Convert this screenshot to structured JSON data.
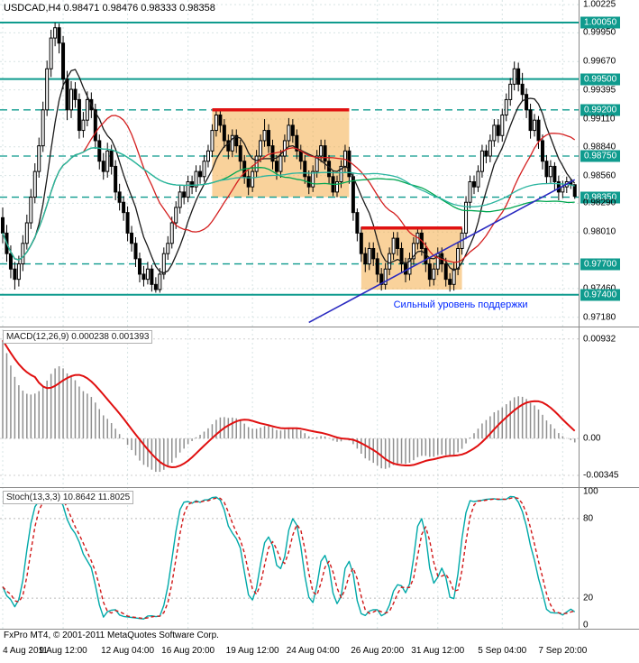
{
  "header": {
    "title": "USDCAD,H4 0.98471 0.98476 0.98333 0.98358",
    "symbol": "USDCAD",
    "period": "H4"
  },
  "footer": {
    "copyright": "FxPro MT4, © 2001-2011 MetaQuotes Software Corp."
  },
  "colors": {
    "teal_line": "#0f9b8e",
    "badge_bg": "#0f9b8e",
    "badge_text": "#ffffff",
    "grid": "#d7e4e4",
    "panel_border": "#8a8a8a",
    "zone_fill": "#f4a537",
    "zone_top": "#e01212",
    "macd_hist": "#8f8f8f",
    "macd_signal": "#e01010",
    "stoch_k": "#00a9a9",
    "stoch_d": "#d01818",
    "candle": "#000000",
    "trend_blue": "#2a2ac0",
    "annotation_blue": "#0026ff"
  },
  "time_axis": {
    "ticks": [
      {
        "label": "4 Aug 2011",
        "bar": 0
      },
      {
        "label": "9 Aug 12:00",
        "bar": 15
      },
      {
        "label": "12 Aug 04:00",
        "bar": 31
      },
      {
        "label": "16 Aug 20:00",
        "bar": 46
      },
      {
        "label": "19 Aug 12:00",
        "bar": 62
      },
      {
        "label": "24 Aug 04:00",
        "bar": 77
      },
      {
        "label": "26 Aug 20:00",
        "bar": 93
      },
      {
        "label": "31 Aug 12:00",
        "bar": 108
      },
      {
        "label": "5 Sep 04:00",
        "bar": 124
      },
      {
        "label": "7 Sep 20:00",
        "bar": 139
      }
    ]
  },
  "chart_data": [
    {
      "type": "candlestick",
      "symbol": "USDCAD",
      "timeframe": "H4",
      "current_bar": {
        "open": 0.98471,
        "high": 0.98476,
        "low": 0.98333,
        "close": 0.98358
      },
      "ylim": [
        0.9709,
        1.0027
      ],
      "y_ticks": [
        {
          "label": "1.00225",
          "value": 1.00225,
          "highlight": false
        },
        {
          "label": "1.00050",
          "value": 1.0005,
          "highlight": true
        },
        {
          "label": "0.99950",
          "value": 0.9995,
          "highlight": false
        },
        {
          "label": "0.99670",
          "value": 0.9967,
          "highlight": false
        },
        {
          "label": "0.99500",
          "value": 0.995,
          "highlight": true
        },
        {
          "label": "0.99395",
          "value": 0.99395,
          "highlight": false
        },
        {
          "label": "0.99200",
          "value": 0.992,
          "highlight": true
        },
        {
          "label": "0.99110",
          "value": 0.9911,
          "highlight": false
        },
        {
          "label": "0.98840",
          "value": 0.9884,
          "highlight": false
        },
        {
          "label": "0.98750",
          "value": 0.9875,
          "highlight": true
        },
        {
          "label": "0.98560",
          "value": 0.9856,
          "highlight": false
        },
        {
          "label": "0.98350",
          "value": 0.9835,
          "highlight": true
        },
        {
          "label": "0.98290",
          "value": 0.9829,
          "highlight": false
        },
        {
          "label": "0.98010",
          "value": 0.9801,
          "highlight": false
        },
        {
          "label": "0.97700",
          "value": 0.977,
          "highlight": true
        },
        {
          "label": "0.97460",
          "value": 0.9746,
          "highlight": false
        },
        {
          "label": "0.97400",
          "value": 0.974,
          "highlight": true
        },
        {
          "label": "0.97180",
          "value": 0.9718,
          "highlight": false
        }
      ],
      "h_levels": [
        {
          "value": 1.0005,
          "style": "solid"
        },
        {
          "value": 0.995,
          "style": "solid"
        },
        {
          "value": 0.974,
          "style": "solid"
        },
        {
          "value": 0.992,
          "style": "dashed"
        },
        {
          "value": 0.9875,
          "style": "dashed"
        },
        {
          "value": 0.9835,
          "style": "dashed"
        },
        {
          "value": 0.977,
          "style": "dashed"
        }
      ],
      "zones": [
        {
          "from_bar": 52,
          "to_bar": 86,
          "top": 0.992,
          "bottom": 0.9835
        },
        {
          "from_bar": 89,
          "to_bar": 114,
          "top": 0.9805,
          "bottom": 0.9745
        }
      ],
      "moving_averages": [
        {
          "type": "sma",
          "period": 8,
          "color": "#1a1a1a"
        },
        {
          "type": "sma",
          "period": 21,
          "color": "#d42020"
        },
        {
          "type": "sma",
          "period": 55,
          "color": "#00a651"
        },
        {
          "type": "sma",
          "period": 89,
          "color": "#2bb5a0"
        }
      ],
      "trendline": {
        "from_bar": 76,
        "from_price": 0.9713,
        "to_bar": 142,
        "to_price": 0.9852,
        "color": "#2a2ac0"
      },
      "annotation": {
        "text": "Сильный уровень поддержки",
        "bar": 97,
        "price": 0.9729,
        "color": "#0026ff"
      },
      "bars": [
        [
          0.9815,
          0.9825,
          0.979,
          0.98
        ],
        [
          0.98,
          0.9808,
          0.9772,
          0.978
        ],
        [
          0.978,
          0.9788,
          0.9756,
          0.9765
        ],
        [
          0.9765,
          0.9772,
          0.9745,
          0.9755
        ],
        [
          0.9755,
          0.9778,
          0.9748,
          0.977
        ],
        [
          0.977,
          0.9798,
          0.9763,
          0.979
        ],
        [
          0.979,
          0.9818,
          0.9784,
          0.981
        ],
        [
          0.981,
          0.9843,
          0.9804,
          0.9835
        ],
        [
          0.9835,
          0.9868,
          0.9829,
          0.986
        ],
        [
          0.986,
          0.9893,
          0.9854,
          0.9885
        ],
        [
          0.9885,
          0.9928,
          0.9879,
          0.992
        ],
        [
          0.992,
          0.9968,
          0.9914,
          0.996
        ],
        [
          0.996,
          0.9998,
          0.9952,
          0.999
        ],
        [
          0.999,
          1.0005,
          0.9982,
          1.0
        ],
        [
          1.0,
          1.0004,
          0.9975,
          0.9985
        ],
        [
          0.9985,
          0.9992,
          0.994,
          0.995
        ],
        [
          0.995,
          0.9958,
          0.991,
          0.992
        ],
        [
          0.992,
          0.9948,
          0.9912,
          0.994
        ],
        [
          0.994,
          0.9947,
          0.9922,
          0.993
        ],
        [
          0.993,
          0.9936,
          0.9892,
          0.99
        ],
        [
          0.99,
          0.9918,
          0.9893,
          0.991
        ],
        [
          0.991,
          0.9938,
          0.9904,
          0.993
        ],
        [
          0.993,
          0.9937,
          0.9912,
          0.992
        ],
        [
          0.992,
          0.9926,
          0.9882,
          0.989
        ],
        [
          0.989,
          0.9896,
          0.9862,
          0.987
        ],
        [
          0.987,
          0.9878,
          0.9852,
          0.986
        ],
        [
          0.986,
          0.9888,
          0.9854,
          0.988
        ],
        [
          0.988,
          0.9886,
          0.9857,
          0.9865
        ],
        [
          0.9865,
          0.9871,
          0.9832,
          0.984
        ],
        [
          0.984,
          0.9848,
          0.9822,
          0.983
        ],
        [
          0.983,
          0.9836,
          0.9812,
          0.982
        ],
        [
          0.982,
          0.9826,
          0.9792,
          0.98
        ],
        [
          0.98,
          0.9807,
          0.9782,
          0.979
        ],
        [
          0.979,
          0.9796,
          0.9767,
          0.9775
        ],
        [
          0.9775,
          0.9781,
          0.9752,
          0.976
        ],
        [
          0.976,
          0.9768,
          0.9748,
          0.9755
        ],
        [
          0.9755,
          0.9772,
          0.975,
          0.9765
        ],
        [
          0.9765,
          0.9769,
          0.9743,
          0.975
        ],
        [
          0.975,
          0.9757,
          0.9742,
          0.9745
        ],
        [
          0.9745,
          0.9766,
          0.9742,
          0.976
        ],
        [
          0.976,
          0.9786,
          0.9755,
          0.978
        ],
        [
          0.978,
          0.9797,
          0.9774,
          0.979
        ],
        [
          0.979,
          0.9816,
          0.9785,
          0.981
        ],
        [
          0.981,
          0.9831,
          0.9804,
          0.9825
        ],
        [
          0.9825,
          0.9846,
          0.9819,
          0.984
        ],
        [
          0.984,
          0.9846,
          0.9828,
          0.9835
        ],
        [
          0.9835,
          0.9856,
          0.983,
          0.985
        ],
        [
          0.985,
          0.9856,
          0.9838,
          0.9845
        ],
        [
          0.9845,
          0.9866,
          0.984,
          0.986
        ],
        [
          0.986,
          0.9866,
          0.9848,
          0.9855
        ],
        [
          0.9855,
          0.9876,
          0.985,
          0.987
        ],
        [
          0.987,
          0.9886,
          0.9864,
          0.988
        ],
        [
          0.988,
          0.9906,
          0.9874,
          0.99
        ],
        [
          0.99,
          0.992,
          0.9894,
          0.9915
        ],
        [
          0.9915,
          0.9919,
          0.9898,
          0.9905
        ],
        [
          0.9905,
          0.9911,
          0.9883,
          0.989
        ],
        [
          0.989,
          0.9896,
          0.9872,
          0.988
        ],
        [
          0.988,
          0.9901,
          0.9874,
          0.9895
        ],
        [
          0.9895,
          0.9901,
          0.9878,
          0.9885
        ],
        [
          0.9885,
          0.9891,
          0.9862,
          0.987
        ],
        [
          0.987,
          0.9876,
          0.9848,
          0.9855
        ],
        [
          0.9855,
          0.9861,
          0.9837,
          0.9845
        ],
        [
          0.9845,
          0.9866,
          0.984,
          0.986
        ],
        [
          0.986,
          0.9881,
          0.9854,
          0.9875
        ],
        [
          0.9875,
          0.9896,
          0.9869,
          0.989
        ],
        [
          0.989,
          0.9911,
          0.9884,
          0.99
        ],
        [
          0.99,
          0.9906,
          0.9878,
          0.9885
        ],
        [
          0.9885,
          0.9891,
          0.9862,
          0.987
        ],
        [
          0.987,
          0.9876,
          0.9852,
          0.986
        ],
        [
          0.986,
          0.9881,
          0.9854,
          0.9875
        ],
        [
          0.9875,
          0.9896,
          0.9869,
          0.989
        ],
        [
          0.989,
          0.9912,
          0.9884,
          0.9905
        ],
        [
          0.9905,
          0.9911,
          0.9888,
          0.9895
        ],
        [
          0.9895,
          0.9901,
          0.9872,
          0.988
        ],
        [
          0.988,
          0.9886,
          0.9862,
          0.987
        ],
        [
          0.987,
          0.9876,
          0.9848,
          0.9855
        ],
        [
          0.9855,
          0.9861,
          0.9838,
          0.9845
        ],
        [
          0.9845,
          0.9866,
          0.984,
          0.986
        ],
        [
          0.986,
          0.9881,
          0.9854,
          0.9875
        ],
        [
          0.9875,
          0.9891,
          0.9869,
          0.9885
        ],
        [
          0.9885,
          0.9891,
          0.9862,
          0.987
        ],
        [
          0.987,
          0.9876,
          0.9848,
          0.9855
        ],
        [
          0.9855,
          0.9861,
          0.9836,
          0.984
        ],
        [
          0.984,
          0.9856,
          0.9835,
          0.985
        ],
        [
          0.985,
          0.9871,
          0.9844,
          0.9865
        ],
        [
          0.9865,
          0.9886,
          0.9859,
          0.988
        ],
        [
          0.988,
          0.9884,
          0.9848,
          0.9855
        ],
        [
          0.9855,
          0.9858,
          0.9812,
          0.982
        ],
        [
          0.982,
          0.9824,
          0.9792,
          0.98
        ],
        [
          0.98,
          0.9806,
          0.9772,
          0.978
        ],
        [
          0.978,
          0.9786,
          0.9762,
          0.977
        ],
        [
          0.977,
          0.9791,
          0.9764,
          0.9785
        ],
        [
          0.9785,
          0.9791,
          0.9768,
          0.9775
        ],
        [
          0.9775,
          0.9781,
          0.9752,
          0.976
        ],
        [
          0.976,
          0.9766,
          0.9744,
          0.975
        ],
        [
          0.975,
          0.9771,
          0.9745,
          0.9765
        ],
        [
          0.9765,
          0.9786,
          0.9759,
          0.978
        ],
        [
          0.978,
          0.9801,
          0.9774,
          0.9795
        ],
        [
          0.9795,
          0.9801,
          0.9778,
          0.9785
        ],
        [
          0.9785,
          0.9791,
          0.9762,
          0.977
        ],
        [
          0.977,
          0.9776,
          0.9752,
          0.976
        ],
        [
          0.976,
          0.9781,
          0.9754,
          0.9775
        ],
        [
          0.9775,
          0.9796,
          0.9769,
          0.979
        ],
        [
          0.979,
          0.9805,
          0.9784,
          0.98
        ],
        [
          0.98,
          0.9804,
          0.9778,
          0.9785
        ],
        [
          0.9785,
          0.9791,
          0.9762,
          0.977
        ],
        [
          0.977,
          0.9776,
          0.9748,
          0.9755
        ],
        [
          0.9755,
          0.9771,
          0.9749,
          0.9765
        ],
        [
          0.9765,
          0.9786,
          0.9759,
          0.978
        ],
        [
          0.978,
          0.9786,
          0.9762,
          0.977
        ],
        [
          0.977,
          0.9776,
          0.9748,
          0.9755
        ],
        [
          0.9755,
          0.9761,
          0.9743,
          0.975
        ],
        [
          0.975,
          0.9771,
          0.9744,
          0.9765
        ],
        [
          0.9765,
          0.9791,
          0.9759,
          0.9785
        ],
        [
          0.9785,
          0.9805,
          0.9779,
          0.98
        ],
        [
          0.98,
          0.9836,
          0.9794,
          0.983
        ],
        [
          0.983,
          0.9856,
          0.9824,
          0.985
        ],
        [
          0.985,
          0.9856,
          0.9838,
          0.9845
        ],
        [
          0.9845,
          0.9866,
          0.984,
          0.986
        ],
        [
          0.986,
          0.9886,
          0.9854,
          0.988
        ],
        [
          0.988,
          0.9886,
          0.9868,
          0.9875
        ],
        [
          0.9875,
          0.9896,
          0.9869,
          0.989
        ],
        [
          0.989,
          0.9911,
          0.9884,
          0.9905
        ],
        [
          0.9905,
          0.9911,
          0.9888,
          0.9895
        ],
        [
          0.9895,
          0.9921,
          0.9889,
          0.9915
        ],
        [
          0.9915,
          0.9936,
          0.9909,
          0.993
        ],
        [
          0.993,
          0.9951,
          0.9924,
          0.9945
        ],
        [
          0.9945,
          0.9967,
          0.9939,
          0.996
        ],
        [
          0.996,
          0.9966,
          0.9938,
          0.9945
        ],
        [
          0.9945,
          0.9956,
          0.9928,
          0.9935
        ],
        [
          0.9935,
          0.9941,
          0.9912,
          0.992
        ],
        [
          0.992,
          0.9926,
          0.9892,
          0.99
        ],
        [
          0.99,
          0.9916,
          0.9894,
          0.991
        ],
        [
          0.991,
          0.9914,
          0.9882,
          0.989
        ],
        [
          0.989,
          0.9896,
          0.9862,
          0.987
        ],
        [
          0.987,
          0.9876,
          0.9848,
          0.9855
        ],
        [
          0.9855,
          0.9871,
          0.9849,
          0.9865
        ],
        [
          0.9865,
          0.9869,
          0.9842,
          0.985
        ],
        [
          0.985,
          0.9856,
          0.9832,
          0.984
        ],
        [
          0.984,
          0.9851,
          0.9834,
          0.9845
        ],
        [
          0.9845,
          0.9855,
          0.9839,
          0.985
        ],
        [
          0.985,
          0.9853,
          0.9843,
          0.98471
        ],
        [
          0.98471,
          0.98476,
          0.98333,
          0.98358
        ]
      ]
    },
    {
      "type": "macd",
      "label_line": "MACD(12,26,9) 0.000238 0.001393",
      "params": [
        12,
        26,
        9
      ],
      "current": {
        "macd": 0.000238,
        "signal": 0.001393
      },
      "y_ticks": [
        {
          "label": "0.00932",
          "value": 0.00932
        },
        {
          "label": "0.00",
          "value": 0
        },
        {
          "label": "-0.00345",
          "value": -0.00345
        }
      ],
      "ylim": [
        -0.00455,
        0.0104
      ],
      "seed": {
        "fast_offset": 0.0046,
        "slow_offset": -0.0046
      }
    },
    {
      "type": "stochastic",
      "label_line": "Stoch(13,3,3) 10.8642 11.8025",
      "params": [
        13,
        3,
        3
      ],
      "current": {
        "k": 10.8642,
        "d": 11.8025
      },
      "y_ticks": [
        {
          "label": "100",
          "value": 100
        },
        {
          "label": "80",
          "value": 80
        },
        {
          "label": "20",
          "value": 20
        },
        {
          "label": "0",
          "value": 0
        }
      ],
      "levels": [
        80,
        20
      ],
      "ylim": [
        -3,
        103
      ]
    }
  ]
}
